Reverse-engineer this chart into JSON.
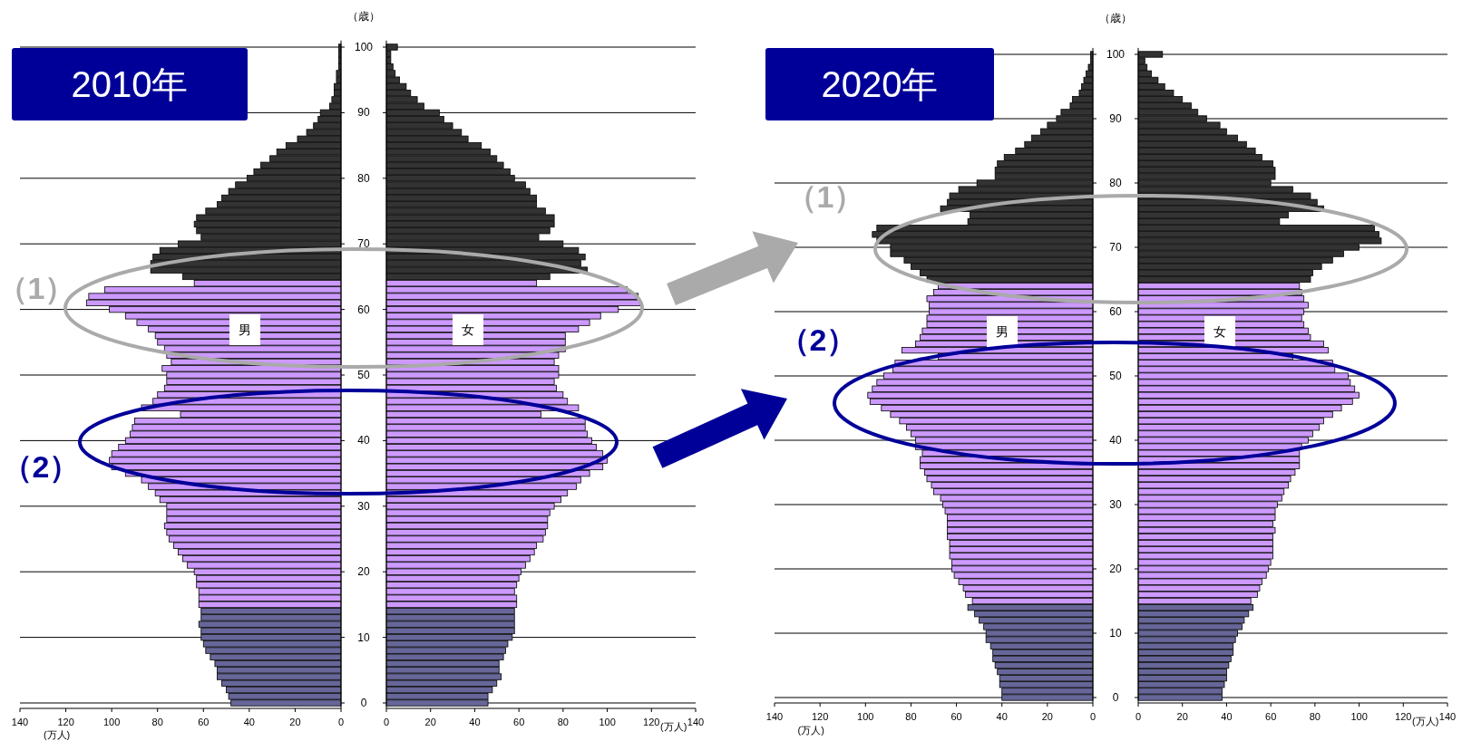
{
  "chart_data": [
    {
      "type": "bar",
      "orientation": "horizontal",
      "title": "2010年",
      "xlabel": "(万人)",
      "annotations": [
        "男",
        "（1）",
        "（2）"
      ],
      "tick_labels": "x",
      "grid": "y",
      "xlim": [
        140,
        0
      ],
      "xticks": [
        0,
        20,
        40,
        60,
        80,
        100,
        120,
        140
      ],
      "categories": [
        "100",
        null,
        null,
        null,
        null,
        null,
        null,
        null,
        null,
        null,
        "90",
        null,
        null,
        null,
        null,
        null,
        null,
        null,
        null,
        null,
        "80",
        null,
        null,
        null,
        null,
        null,
        null,
        null,
        null,
        null,
        "70",
        null,
        null,
        null,
        null,
        null,
        null,
        null,
        null,
        null,
        "60",
        null,
        null,
        null,
        null,
        null,
        null,
        null,
        null,
        null,
        "50",
        null,
        null,
        null,
        null,
        null,
        null,
        null,
        null,
        null,
        "40",
        null,
        null,
        null,
        null,
        null,
        null,
        null,
        null,
        null,
        "30",
        null,
        null,
        null,
        null,
        null,
        null,
        null,
        null,
        null,
        "20",
        null,
        null,
        null,
        null,
        null,
        null,
        null,
        null,
        null,
        "10",
        null,
        null,
        null,
        null,
        null,
        null,
        null,
        null,
        null,
        "0"
      ],
      "values": [
        1,
        1,
        1,
        1,
        2,
        2,
        3,
        3,
        4,
        5,
        9,
        10,
        12,
        15,
        19,
        24,
        28,
        31,
        35,
        38,
        41,
        46,
        49,
        52,
        54,
        59,
        63,
        64,
        63,
        61,
        71,
        79,
        82,
        83,
        83,
        69,
        64,
        103,
        110,
        111,
        101,
        94,
        89,
        84,
        81,
        80,
        77,
        76,
        74,
        78,
        76,
        76,
        77,
        80,
        82,
        87,
        70,
        90,
        91,
        92,
        94,
        97,
        100,
        101,
        100,
        94,
        87,
        84,
        81,
        79,
        76,
        76,
        76,
        77,
        76,
        75,
        73,
        71,
        69,
        67,
        64,
        63,
        63,
        62,
        62,
        62,
        61,
        61,
        62,
        61,
        61,
        60,
        59,
        57,
        55,
        54,
        54,
        52,
        50,
        49,
        48
      ],
      "colors": [
        "#333333",
        "#333333",
        "#333333",
        "#333333",
        "#333333",
        "#333333",
        "#333333",
        "#333333",
        "#333333",
        "#333333",
        "#333333",
        "#333333",
        "#333333",
        "#333333",
        "#333333",
        "#333333",
        "#333333",
        "#333333",
        "#333333",
        "#333333",
        "#333333",
        "#333333",
        "#333333",
        "#333333",
        "#333333",
        "#333333",
        "#333333",
        "#333333",
        "#333333",
        "#333333",
        "#333333",
        "#333333",
        "#333333",
        "#333333",
        "#333333",
        "#333333",
        "#cc99ff",
        "#cc99ff",
        "#cc99ff",
        "#cc99ff",
        "#cc99ff",
        "#cc99ff",
        "#cc99ff",
        "#cc99ff",
        "#cc99ff",
        "#cc99ff",
        "#cc99ff",
        "#cc99ff",
        "#cc99ff",
        "#cc99ff",
        "#cc99ff",
        "#cc99ff",
        "#cc99ff",
        "#cc99ff",
        "#cc99ff",
        "#cc99ff",
        "#cc99ff",
        "#cc99ff",
        "#cc99ff",
        "#cc99ff",
        "#cc99ff",
        "#cc99ff",
        "#cc99ff",
        "#cc99ff",
        "#cc99ff",
        "#cc99ff",
        "#cc99ff",
        "#cc99ff",
        "#cc99ff",
        "#cc99ff",
        "#cc99ff",
        "#cc99ff",
        "#cc99ff",
        "#cc99ff",
        "#cc99ff",
        "#cc99ff",
        "#cc99ff",
        "#cc99ff",
        "#cc99ff",
        "#cc99ff",
        "#cc99ff",
        "#cc99ff",
        "#cc99ff",
        "#cc99ff",
        "#cc99ff",
        "#cc99ff",
        "#666699",
        "#666699",
        "#666699",
        "#666699",
        "#666699",
        "#666699",
        "#666699",
        "#666699",
        "#666699",
        "#666699",
        "#666699",
        "#666699",
        "#666699",
        "#666699",
        "#666699"
      ]
    },
    {
      "type": "bar",
      "orientation": "horizontal",
      "ylabel": "（歳）",
      "xlabel": "(万人)",
      "annotations": [
        "女"
      ],
      "grid": "y",
      "xlim": [
        0,
        140
      ],
      "xticks": [
        0,
        20,
        40,
        60,
        80,
        100,
        120,
        140
      ],
      "categories": [
        "100",
        null,
        null,
        null,
        null,
        null,
        null,
        null,
        null,
        null,
        "90",
        null,
        null,
        null,
        null,
        null,
        null,
        null,
        null,
        null,
        "80",
        null,
        null,
        null,
        null,
        null,
        null,
        null,
        null,
        null,
        "70",
        null,
        null,
        null,
        null,
        null,
        null,
        null,
        null,
        null,
        "60",
        null,
        null,
        null,
        null,
        null,
        null,
        null,
        null,
        null,
        "50",
        null,
        null,
        null,
        null,
        null,
        null,
        null,
        null,
        null,
        "40",
        null,
        null,
        null,
        null,
        null,
        null,
        null,
        null,
        null,
        "30",
        null,
        null,
        null,
        null,
        null,
        null,
        null,
        null,
        null,
        "20",
        null,
        null,
        null,
        null,
        null,
        null,
        null,
        null,
        null,
        "10",
        null,
        null,
        null,
        null,
        null,
        null,
        null,
        null,
        null,
        "0"
      ],
      "values": [
        5,
        2,
        2,
        3,
        4,
        6,
        9,
        11,
        14,
        17,
        24,
        26,
        30,
        34,
        37,
        43,
        47,
        50,
        53,
        56,
        58,
        63,
        65,
        68,
        68,
        72,
        76,
        76,
        74,
        69,
        80,
        87,
        90,
        88,
        91,
        74,
        68,
        109,
        114,
        115,
        105,
        97,
        92,
        87,
        81,
        81,
        81,
        78,
        76,
        78,
        78,
        76,
        77,
        80,
        82,
        87,
        70,
        90,
        90,
        91,
        93,
        95,
        98,
        100,
        98,
        92,
        88,
        86,
        82,
        79,
        76,
        74,
        73,
        73,
        72,
        71,
        68,
        67,
        65,
        63,
        61,
        60,
        59,
        58,
        59,
        59,
        58,
        58,
        58,
        58,
        57,
        55,
        54,
        53,
        51,
        51,
        52,
        50,
        48,
        46,
        46
      ],
      "colors": [
        "#333333",
        "#333333",
        "#333333",
        "#333333",
        "#333333",
        "#333333",
        "#333333",
        "#333333",
        "#333333",
        "#333333",
        "#333333",
        "#333333",
        "#333333",
        "#333333",
        "#333333",
        "#333333",
        "#333333",
        "#333333",
        "#333333",
        "#333333",
        "#333333",
        "#333333",
        "#333333",
        "#333333",
        "#333333",
        "#333333",
        "#333333",
        "#333333",
        "#333333",
        "#333333",
        "#333333",
        "#333333",
        "#333333",
        "#333333",
        "#333333",
        "#333333",
        "#cc99ff",
        "#cc99ff",
        "#cc99ff",
        "#cc99ff",
        "#cc99ff",
        "#cc99ff",
        "#cc99ff",
        "#cc99ff",
        "#cc99ff",
        "#cc99ff",
        "#cc99ff",
        "#cc99ff",
        "#cc99ff",
        "#cc99ff",
        "#cc99ff",
        "#cc99ff",
        "#cc99ff",
        "#cc99ff",
        "#cc99ff",
        "#cc99ff",
        "#cc99ff",
        "#cc99ff",
        "#cc99ff",
        "#cc99ff",
        "#cc99ff",
        "#cc99ff",
        "#cc99ff",
        "#cc99ff",
        "#cc99ff",
        "#cc99ff",
        "#cc99ff",
        "#cc99ff",
        "#cc99ff",
        "#cc99ff",
        "#cc99ff",
        "#cc99ff",
        "#cc99ff",
        "#cc99ff",
        "#cc99ff",
        "#cc99ff",
        "#cc99ff",
        "#cc99ff",
        "#cc99ff",
        "#cc99ff",
        "#cc99ff",
        "#cc99ff",
        "#cc99ff",
        "#cc99ff",
        "#cc99ff",
        "#cc99ff",
        "#666699",
        "#666699",
        "#666699",
        "#666699",
        "#666699",
        "#666699",
        "#666699",
        "#666699",
        "#666699",
        "#666699",
        "#666699",
        "#666699",
        "#666699",
        "#666699",
        "#666699"
      ]
    },
    {
      "type": "bar",
      "orientation": "horizontal",
      "title": "2020年",
      "xlabel": "(万人)",
      "annotations": [
        "男",
        "（1）",
        "（2）"
      ],
      "tick_labels": "x",
      "grid": "y",
      "xlim": [
        140,
        0
      ],
      "xticks": [
        0,
        20,
        40,
        60,
        80,
        100,
        120,
        140
      ],
      "categories": [
        "100",
        null,
        null,
        null,
        null,
        null,
        null,
        null,
        null,
        null,
        "90",
        null,
        null,
        null,
        null,
        null,
        null,
        null,
        null,
        null,
        "80",
        null,
        null,
        null,
        null,
        null,
        null,
        null,
        null,
        null,
        "70",
        null,
        null,
        null,
        null,
        null,
        null,
        null,
        null,
        null,
        "60",
        null,
        null,
        null,
        null,
        null,
        null,
        null,
        null,
        null,
        "50",
        null,
        null,
        null,
        null,
        null,
        null,
        null,
        null,
        null,
        "40",
        null,
        null,
        null,
        null,
        null,
        null,
        null,
        null,
        null,
        "30",
        null,
        null,
        null,
        null,
        null,
        null,
        null,
        null,
        null,
        "20",
        null,
        null,
        null,
        null,
        null,
        null,
        null,
        null,
        null,
        "10",
        null,
        null,
        null,
        null,
        null,
        null,
        null,
        null,
        null,
        "0"
      ],
      "values": [
        1,
        1,
        2,
        3,
        4,
        5,
        6,
        9,
        10,
        14,
        16,
        20,
        23,
        27,
        30,
        34,
        39,
        42,
        43,
        43,
        51,
        59,
        63,
        64,
        67,
        54,
        55,
        95,
        97,
        95,
        89,
        89,
        83,
        80,
        76,
        73,
        68,
        70,
        73,
        72,
        72,
        73,
        73,
        75,
        76,
        78,
        84,
        68,
        87,
        88,
        92,
        95,
        97,
        99,
        98,
        93,
        89,
        85,
        82,
        80,
        78,
        78,
        75,
        76,
        76,
        74,
        73,
        71,
        70,
        67,
        66,
        65,
        64,
        64,
        64,
        64,
        63,
        63,
        63,
        62,
        62,
        61,
        59,
        57,
        56,
        53,
        55,
        52,
        50,
        48,
        47,
        47,
        45,
        44,
        44,
        43,
        42,
        41,
        41,
        40,
        40
      ],
      "colors": [
        "#333333",
        "#333333",
        "#333333",
        "#333333",
        "#333333",
        "#333333",
        "#333333",
        "#333333",
        "#333333",
        "#333333",
        "#333333",
        "#333333",
        "#333333",
        "#333333",
        "#333333",
        "#333333",
        "#333333",
        "#333333",
        "#333333",
        "#333333",
        "#333333",
        "#333333",
        "#333333",
        "#333333",
        "#333333",
        "#333333",
        "#333333",
        "#333333",
        "#333333",
        "#333333",
        "#333333",
        "#333333",
        "#333333",
        "#333333",
        "#333333",
        "#333333",
        "#cc99ff",
        "#cc99ff",
        "#cc99ff",
        "#cc99ff",
        "#cc99ff",
        "#cc99ff",
        "#cc99ff",
        "#cc99ff",
        "#cc99ff",
        "#cc99ff",
        "#cc99ff",
        "#cc99ff",
        "#cc99ff",
        "#cc99ff",
        "#cc99ff",
        "#cc99ff",
        "#cc99ff",
        "#cc99ff",
        "#cc99ff",
        "#cc99ff",
        "#cc99ff",
        "#cc99ff",
        "#cc99ff",
        "#cc99ff",
        "#cc99ff",
        "#cc99ff",
        "#cc99ff",
        "#cc99ff",
        "#cc99ff",
        "#cc99ff",
        "#cc99ff",
        "#cc99ff",
        "#cc99ff",
        "#cc99ff",
        "#cc99ff",
        "#cc99ff",
        "#cc99ff",
        "#cc99ff",
        "#cc99ff",
        "#cc99ff",
        "#cc99ff",
        "#cc99ff",
        "#cc99ff",
        "#cc99ff",
        "#cc99ff",
        "#cc99ff",
        "#cc99ff",
        "#cc99ff",
        "#cc99ff",
        "#cc99ff",
        "#666699",
        "#666699",
        "#666699",
        "#666699",
        "#666699",
        "#666699",
        "#666699",
        "#666699",
        "#666699",
        "#666699",
        "#666699",
        "#666699",
        "#666699",
        "#666699",
        "#666699"
      ]
    },
    {
      "type": "bar",
      "orientation": "horizontal",
      "ylabel": "（歳）",
      "xlabel": "(万人)",
      "annotations": [
        "女"
      ],
      "grid": "y",
      "xlim": [
        0,
        140
      ],
      "xticks": [
        0,
        20,
        40,
        60,
        80,
        100,
        120,
        140
      ],
      "categories": [
        "100",
        null,
        null,
        null,
        null,
        null,
        null,
        null,
        null,
        null,
        "90",
        null,
        null,
        null,
        null,
        null,
        null,
        null,
        null,
        null,
        "80",
        null,
        null,
        null,
        null,
        null,
        null,
        null,
        null,
        null,
        "70",
        null,
        null,
        null,
        null,
        null,
        null,
        null,
        null,
        null,
        "60",
        null,
        null,
        null,
        null,
        null,
        null,
        null,
        null,
        null,
        "50",
        null,
        null,
        null,
        null,
        null,
        null,
        null,
        null,
        null,
        "40",
        null,
        null,
        null,
        null,
        null,
        null,
        null,
        null,
        null,
        "30",
        null,
        null,
        null,
        null,
        null,
        null,
        null,
        null,
        null,
        "20",
        null,
        null,
        null,
        null,
        null,
        null,
        null,
        null,
        null,
        "10",
        null,
        null,
        null,
        null,
        null,
        null,
        null,
        null,
        null,
        "0"
      ],
      "values": [
        11,
        3,
        4,
        6,
        9,
        12,
        16,
        20,
        24,
        27,
        31,
        37,
        40,
        45,
        49,
        53,
        56,
        61,
        62,
        62,
        60,
        70,
        78,
        81,
        84,
        68,
        64,
        107,
        109,
        110,
        100,
        93,
        88,
        83,
        79,
        78,
        73,
        74,
        75,
        77,
        75,
        74,
        75,
        77,
        78,
        84,
        86,
        70,
        88,
        89,
        95,
        96,
        98,
        100,
        97,
        92,
        88,
        84,
        82,
        79,
        77,
        74,
        73,
        73,
        73,
        71,
        69,
        68,
        66,
        65,
        63,
        62,
        62,
        61,
        62,
        61,
        61,
        61,
        61,
        60,
        59,
        58,
        56,
        55,
        54,
        51,
        52,
        50,
        48,
        47,
        45,
        44,
        43,
        43,
        42,
        41,
        40,
        40,
        39,
        38,
        38
      ],
      "colors": [
        "#333333",
        "#333333",
        "#333333",
        "#333333",
        "#333333",
        "#333333",
        "#333333",
        "#333333",
        "#333333",
        "#333333",
        "#333333",
        "#333333",
        "#333333",
        "#333333",
        "#333333",
        "#333333",
        "#333333",
        "#333333",
        "#333333",
        "#333333",
        "#333333",
        "#333333",
        "#333333",
        "#333333",
        "#333333",
        "#333333",
        "#333333",
        "#333333",
        "#333333",
        "#333333",
        "#333333",
        "#333333",
        "#333333",
        "#333333",
        "#333333",
        "#333333",
        "#cc99ff",
        "#cc99ff",
        "#cc99ff",
        "#cc99ff",
        "#cc99ff",
        "#cc99ff",
        "#cc99ff",
        "#cc99ff",
        "#cc99ff",
        "#cc99ff",
        "#cc99ff",
        "#cc99ff",
        "#cc99ff",
        "#cc99ff",
        "#cc99ff",
        "#cc99ff",
        "#cc99ff",
        "#cc99ff",
        "#cc99ff",
        "#cc99ff",
        "#cc99ff",
        "#cc99ff",
        "#cc99ff",
        "#cc99ff",
        "#cc99ff",
        "#cc99ff",
        "#cc99ff",
        "#cc99ff",
        "#cc99ff",
        "#cc99ff",
        "#cc99ff",
        "#cc99ff",
        "#cc99ff",
        "#cc99ff",
        "#cc99ff",
        "#cc99ff",
        "#cc99ff",
        "#cc99ff",
        "#cc99ff",
        "#cc99ff",
        "#cc99ff",
        "#cc99ff",
        "#cc99ff",
        "#cc99ff",
        "#cc99ff",
        "#cc99ff",
        "#cc99ff",
        "#cc99ff",
        "#cc99ff",
        "#cc99ff",
        "#666699",
        "#666699",
        "#666699",
        "#666699",
        "#666699",
        "#666699",
        "#666699",
        "#666699",
        "#666699",
        "#666699",
        "#666699",
        "#666699",
        "#666699",
        "#666699",
        "#666699"
      ]
    }
  ]
}
